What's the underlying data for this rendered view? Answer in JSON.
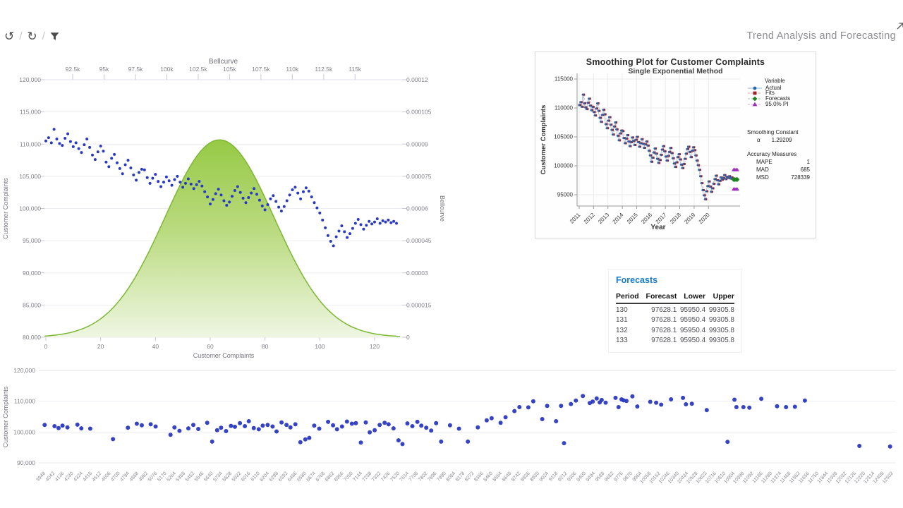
{
  "toolbar": {
    "undo_glyph": "↺",
    "refresh_glyph": "↻",
    "separator": "/",
    "title": "Trend Analysis and Forecasting"
  },
  "forecasts_table": {
    "title": "Forecasts",
    "columns": [
      "Period",
      "Forecast",
      "Lower",
      "Upper"
    ],
    "rows": [
      {
        "period": "130",
        "forecast": "97628.1",
        "lower": "95950.4",
        "upper": "99305.8"
      },
      {
        "period": "131",
        "forecast": "97628.1",
        "lower": "95950.4",
        "upper": "99305.8"
      },
      {
        "period": "132",
        "forecast": "97628.1",
        "lower": "95950.4",
        "upper": "99305.8"
      },
      {
        "period": "133",
        "forecast": "97628.1",
        "lower": "95950.4",
        "upper": "99305.8"
      }
    ]
  },
  "complaints_series": [
    110500,
    111000,
    110200,
    112300,
    110800,
    110100,
    109800,
    110900,
    111600,
    110400,
    109600,
    110200,
    109300,
    108700,
    109900,
    110800,
    109500,
    108300,
    107600,
    108800,
    109700,
    108900,
    107200,
    106500,
    107800,
    108400,
    107100,
    106200,
    105400,
    106800,
    107500,
    106300,
    105200,
    104400,
    105600,
    106100,
    106000,
    104800,
    103900,
    104700,
    105300,
    104200,
    103400,
    104100,
    104900,
    104300,
    103600,
    104500,
    105000,
    104100,
    103300,
    103900,
    104600,
    103800,
    103100,
    103700,
    104200,
    103500,
    102600,
    101800,
    100700,
    101400,
    102300,
    103000,
    102100,
    101200,
    100500,
    101000,
    101900,
    102800,
    103400,
    102500,
    101600,
    100900,
    101700,
    102400,
    103100,
    102200,
    101300,
    100400,
    99800,
    100600,
    101500,
    102000,
    101100,
    100200,
    99600,
    100300,
    101200,
    102100,
    102900,
    103300,
    102400,
    101500,
    102600,
    103200,
    102700,
    101800,
    100900,
    100100,
    99300,
    98200,
    97000,
    95800,
    94900,
    94200,
    95600,
    96500,
    97300,
    96400,
    95500,
    96100,
    96900,
    97700,
    98300,
    97500,
    96800,
    97400,
    98000,
    97600,
    97900,
    98400,
    97700,
    98100,
    97900,
    98200,
    97800,
    98000,
    97700
  ],
  "chart_data": [
    {
      "id": "bellcurve",
      "type": "scatter",
      "title": "Bellcurve",
      "top_axis": {
        "min": 90250,
        "max": 118750,
        "ticks": [
          92500,
          95000,
          97500,
          100000,
          102500,
          105000,
          107500,
          110000,
          112500,
          115000
        ],
        "tick_labels": [
          "92.5k",
          "95k",
          "97.5k",
          "100k",
          "102.5k",
          "105k",
          "107.5k",
          "110k",
          "112.5k",
          "115k"
        ]
      },
      "left_axis": {
        "label": "Customer Complaints",
        "min": 80000,
        "max": 120000,
        "ticks": [
          120000,
          115000,
          110000,
          105000,
          100000,
          95000,
          90000,
          85000,
          80000
        ],
        "tick_labels": [
          "120,000",
          "115,000",
          "110,000",
          "105,000",
          "100,000",
          "95,000",
          "90,000",
          "85,000",
          "80,000"
        ]
      },
      "right_axis": {
        "label": "Bellcurve",
        "min": 0,
        "max": 0.00012,
        "ticks": [
          0.00012,
          0.000105,
          9e-05,
          7.5e-05,
          6e-05,
          4.5e-05,
          3e-05,
          1.5e-05,
          0
        ],
        "tick_labels": [
          "0.00012",
          "0.000105",
          "0.00009",
          "0.000075",
          "0.00006",
          "0.000045",
          "0.00003",
          "0.000015",
          "0"
        ]
      },
      "bottom_axis": {
        "label": "Customer Complaints",
        "min": 0,
        "max": 130,
        "ticks": [
          0,
          20,
          40,
          60,
          80,
          100,
          120
        ]
      },
      "bell": {
        "mean": 104200,
        "sigma": 4350,
        "peak": 9.2e-05
      },
      "colors": {
        "point": "#2a39c1",
        "bell_stroke": "#7cb832",
        "bell_top": "#93c840",
        "bell_mid": "#b7d97a",
        "bell_bottom": "#eef6e1"
      }
    },
    {
      "id": "smoothing",
      "type": "line",
      "title": "Smoothing Plot for Customer Complaints",
      "subtitle": "Single Exponential Method",
      "xlabel": "Year",
      "ylabel": "Customer Complaints",
      "y_axis": {
        "min": 95000,
        "max": 115000,
        "ticks": [
          115000,
          110000,
          105000,
          100000,
          95000
        ]
      },
      "x_axis": {
        "ticks": [
          2011,
          2012,
          2013,
          2014,
          2015,
          2016,
          2017,
          2018,
          2019,
          2020
        ]
      },
      "legend": {
        "header": "Variable",
        "items": [
          {
            "label": "Actual",
            "marker": "circle",
            "color": "#2a66ad",
            "line_color": "#8fb6dd",
            "dash": false
          },
          {
            "label": "Fits",
            "marker": "square",
            "color": "#9d2125",
            "line_color": "#dba4a4",
            "dash": true
          },
          {
            "label": "Forecasts",
            "marker": "diamond",
            "color": "#1e8420",
            "line_color": "#93cb93",
            "dash": true
          },
          {
            "label": "95.0% PI",
            "marker": "triangle",
            "color": "#9c2fbe",
            "line_color": "#d4a3e3",
            "dash": true
          }
        ]
      },
      "stats": {
        "constant_title": "Smoothing Constant",
        "alpha_symbol": "α",
        "alpha_value": "1.29209",
        "accuracy_title": "Accuracy Measures",
        "measures": [
          {
            "name": "MAPE",
            "value": "1"
          },
          {
            "name": "MAD",
            "value": "685"
          },
          {
            "name": "MSD",
            "value": "728339"
          }
        ]
      },
      "forecast": {
        "periods": [
          130,
          131,
          132,
          133
        ],
        "value": 97628.1,
        "upper": 99305.8,
        "lower": 95950.4
      }
    },
    {
      "id": "complaints-scatter",
      "type": "scatter",
      "ylabel": "Customer Complaints",
      "y_axis": {
        "min": 90000,
        "max": 120000,
        "ticks": [
          120000,
          110000,
          100000,
          90000
        ],
        "tick_labels": [
          "120,000",
          "110,000",
          "100,000",
          "90,000"
        ]
      },
      "x_axis": {
        "min": 3901,
        "max": 12549,
        "ticks": [
          3948,
          4042,
          4136,
          4230,
          4324,
          4418,
          4512,
          4606,
          4700,
          4794,
          4888,
          4982,
          5076,
          5170,
          5264,
          5358,
          5452,
          5546,
          5640,
          5734,
          5828,
          5922,
          6016,
          6110,
          6204,
          6298,
          6392,
          6486,
          6580,
          6674,
          6768,
          6862,
          6956,
          7050,
          7144,
          7238,
          7332,
          7426,
          7520,
          7614,
          7708,
          7802,
          7896,
          7990,
          8084,
          8178,
          8272,
          8366,
          8460,
          8554,
          8648,
          8742,
          8836,
          8930,
          9024,
          9118,
          9212,
          9306,
          9400,
          9494,
          9588,
          9682,
          9776,
          9870,
          9964,
          10058,
          10152,
          10246,
          10340,
          10434,
          10528,
          10622,
          10716,
          10810,
          10904,
          10998,
          11092,
          11186,
          11280,
          11374,
          11468,
          11562,
          11656,
          11750,
          11844,
          11938,
          12032,
          12126,
          12220,
          12314,
          12408,
          12502
        ]
      },
      "color": "#2a39c1",
      "points": [
        [
          3960,
          102300
        ],
        [
          4060,
          101900
        ],
        [
          4100,
          101300
        ],
        [
          4140,
          102100
        ],
        [
          4190,
          101500
        ],
        [
          4290,
          102400
        ],
        [
          4330,
          101200
        ],
        [
          4420,
          101100
        ],
        [
          4650,
          97700
        ],
        [
          4800,
          101400
        ],
        [
          4890,
          102700
        ],
        [
          4940,
          102200
        ],
        [
          5030,
          102500
        ],
        [
          5080,
          101800
        ],
        [
          5230,
          99100
        ],
        [
          5270,
          101500
        ],
        [
          5320,
          100400
        ],
        [
          5410,
          101200
        ],
        [
          5460,
          102300
        ],
        [
          5510,
          101000
        ],
        [
          5600,
          103000
        ],
        [
          5650,
          96900
        ],
        [
          5700,
          100600
        ],
        [
          5740,
          101400
        ],
        [
          5790,
          100300
        ],
        [
          5840,
          102000
        ],
        [
          5880,
          101700
        ],
        [
          5930,
          102900
        ],
        [
          5980,
          101900
        ],
        [
          6020,
          103500
        ],
        [
          6070,
          101300
        ],
        [
          6120,
          100900
        ],
        [
          6160,
          102100
        ],
        [
          6210,
          102300
        ],
        [
          6260,
          101800
        ],
        [
          6300,
          100200
        ],
        [
          6350,
          103100
        ],
        [
          6400,
          102300
        ],
        [
          6440,
          101500
        ],
        [
          6490,
          102500
        ],
        [
          6540,
          96700
        ],
        [
          6590,
          97600
        ],
        [
          6630,
          98100
        ],
        [
          6680,
          102100
        ],
        [
          6730,
          101100
        ],
        [
          6820,
          103300
        ],
        [
          6870,
          102200
        ],
        [
          6910,
          100900
        ],
        [
          6960,
          101800
        ],
        [
          7010,
          103400
        ],
        [
          7060,
          102700
        ],
        [
          7100,
          102900
        ],
        [
          7150,
          96600
        ],
        [
          7200,
          103100
        ],
        [
          7240,
          99900
        ],
        [
          7290,
          100600
        ],
        [
          7340,
          102300
        ],
        [
          7390,
          103000
        ],
        [
          7430,
          102500
        ],
        [
          7480,
          101200
        ],
        [
          7530,
          97300
        ],
        [
          7570,
          96100
        ],
        [
          7620,
          102800
        ],
        [
          7670,
          101900
        ],
        [
          7720,
          103300
        ],
        [
          7760,
          102100
        ],
        [
          7810,
          101400
        ],
        [
          7860,
          100500
        ],
        [
          7910,
          102900
        ],
        [
          7960,
          96900
        ],
        [
          8050,
          102200
        ],
        [
          8140,
          101100
        ],
        [
          8230,
          96900
        ],
        [
          8330,
          101500
        ],
        [
          8420,
          103800
        ],
        [
          8470,
          104500
        ],
        [
          8560,
          103000
        ],
        [
          8610,
          104800
        ],
        [
          8700,
          106800
        ],
        [
          8750,
          108100
        ],
        [
          8840,
          108000
        ],
        [
          8890,
          110000
        ],
        [
          8980,
          104200
        ],
        [
          9030,
          108500
        ],
        [
          9120,
          103500
        ],
        [
          9170,
          108500
        ],
        [
          9200,
          96400
        ],
        [
          9270,
          109100
        ],
        [
          9320,
          110200
        ],
        [
          9390,
          111700
        ],
        [
          9460,
          109400
        ],
        [
          9490,
          109900
        ],
        [
          9530,
          110900
        ],
        [
          9560,
          109600
        ],
        [
          9580,
          110400
        ],
        [
          9620,
          109500
        ],
        [
          9720,
          111100
        ],
        [
          9750,
          108100
        ],
        [
          9780,
          110600
        ],
        [
          9800,
          110300
        ],
        [
          9830,
          110100
        ],
        [
          9890,
          111600
        ],
        [
          9940,
          108300
        ],
        [
          10070,
          109800
        ],
        [
          10130,
          109500
        ],
        [
          10180,
          108900
        ],
        [
          10280,
          110600
        ],
        [
          10400,
          111100
        ],
        [
          10430,
          109000
        ],
        [
          10490,
          109200
        ],
        [
          10640,
          107100
        ],
        [
          10850,
          96800
        ],
        [
          10920,
          110500
        ],
        [
          10940,
          108100
        ],
        [
          11010,
          108100
        ],
        [
          11070,
          107900
        ],
        [
          11190,
          110800
        ],
        [
          11350,
          108400
        ],
        [
          11440,
          108100
        ],
        [
          11530,
          108200
        ],
        [
          11630,
          110200
        ],
        [
          12180,
          95500
        ],
        [
          12490,
          95300
        ]
      ]
    }
  ]
}
